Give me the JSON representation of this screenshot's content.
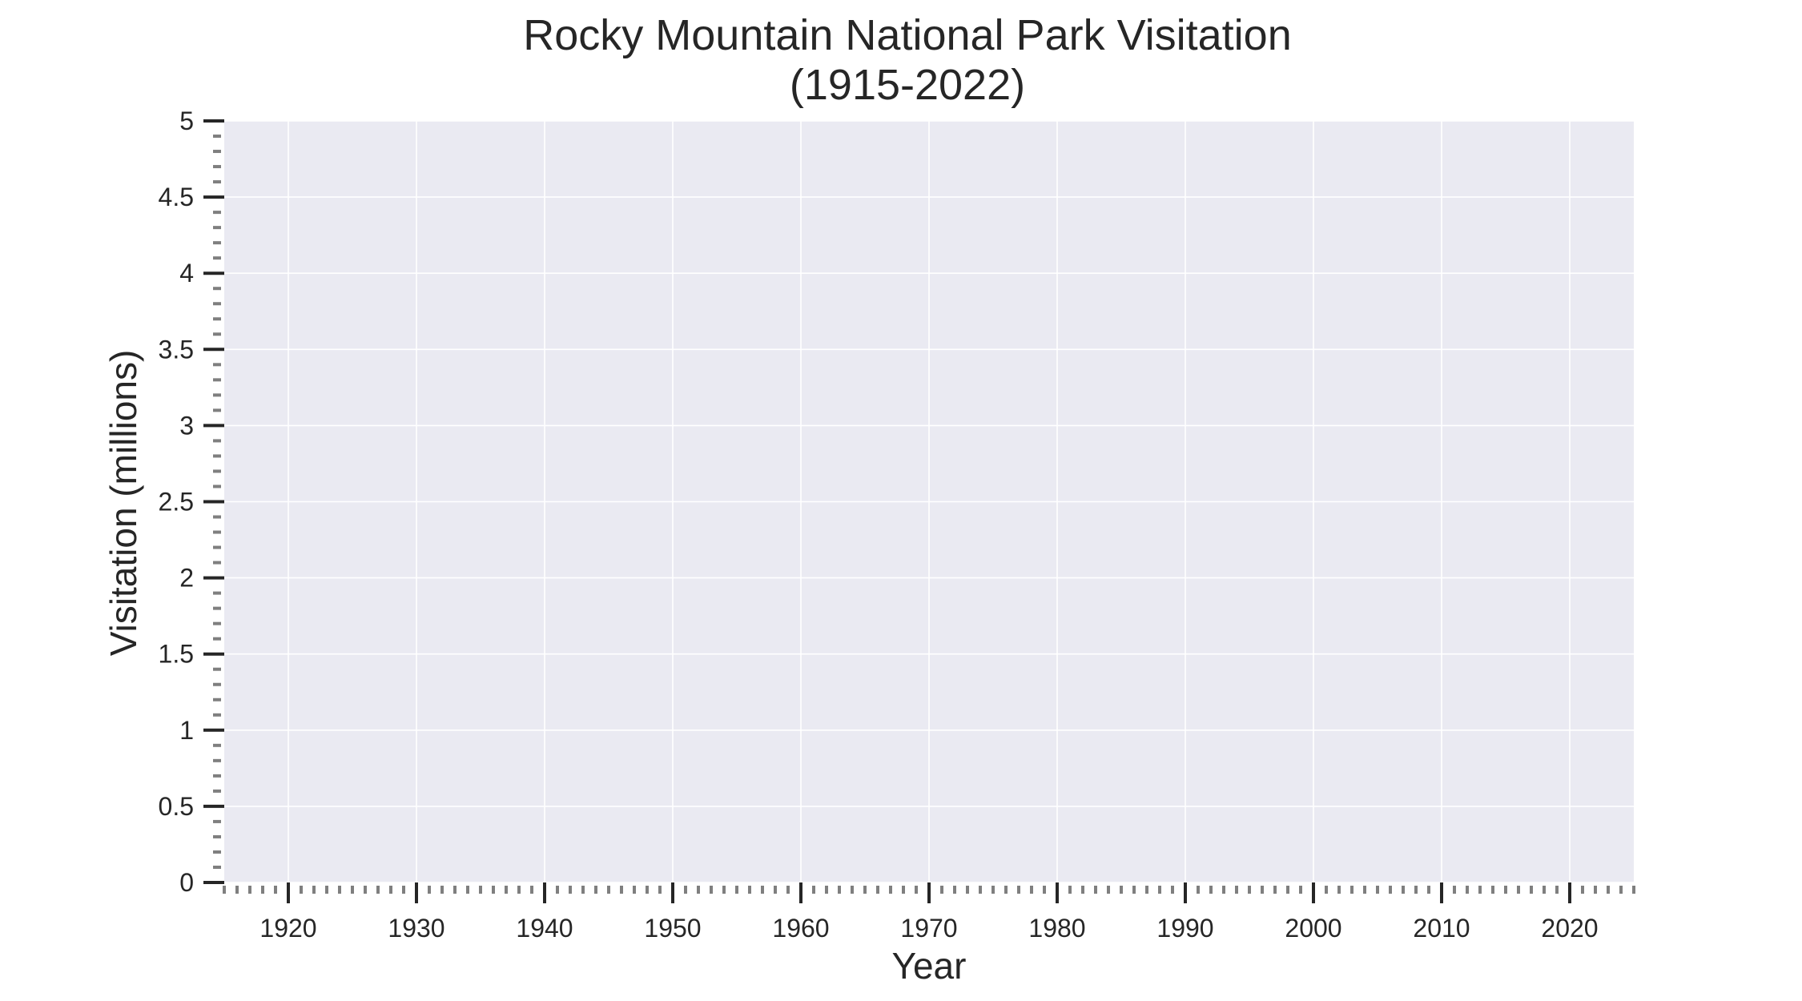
{
  "chart_data": {
    "type": "line",
    "title": "Rocky Mountain National Park Visitation",
    "subtitle": "(1915-2022)",
    "xlabel": "Year",
    "ylabel": "Visitation (millions)",
    "xlim": [
      1915,
      2025
    ],
    "ylim": [
      0,
      5
    ],
    "x_ticks": [
      1920,
      1930,
      1940,
      1950,
      1960,
      1970,
      1980,
      1990,
      2000,
      2010,
      2020
    ],
    "x_tick_labels": [
      "1920",
      "1930",
      "1940",
      "1950",
      "1960",
      "1970",
      "1980",
      "1990",
      "2000",
      "2010",
      "2020"
    ],
    "y_ticks": [
      0,
      0.5,
      1,
      1.5,
      2,
      2.5,
      3,
      3.5,
      4,
      4.5,
      5
    ],
    "y_tick_labels": [
      "0",
      "0.5",
      "1",
      "1.5",
      "2",
      "2.5",
      "3",
      "3.5",
      "4",
      "4.5",
      "5"
    ],
    "x_minor_step": 1,
    "y_minor_step": 0.1,
    "grid": true,
    "series": [],
    "colors": {
      "plot_background": "#eaeaf2",
      "grid": "#ffffff",
      "major_tick": "#262626",
      "minor_tick": "#7f7f7f",
      "text": "#262626"
    }
  }
}
